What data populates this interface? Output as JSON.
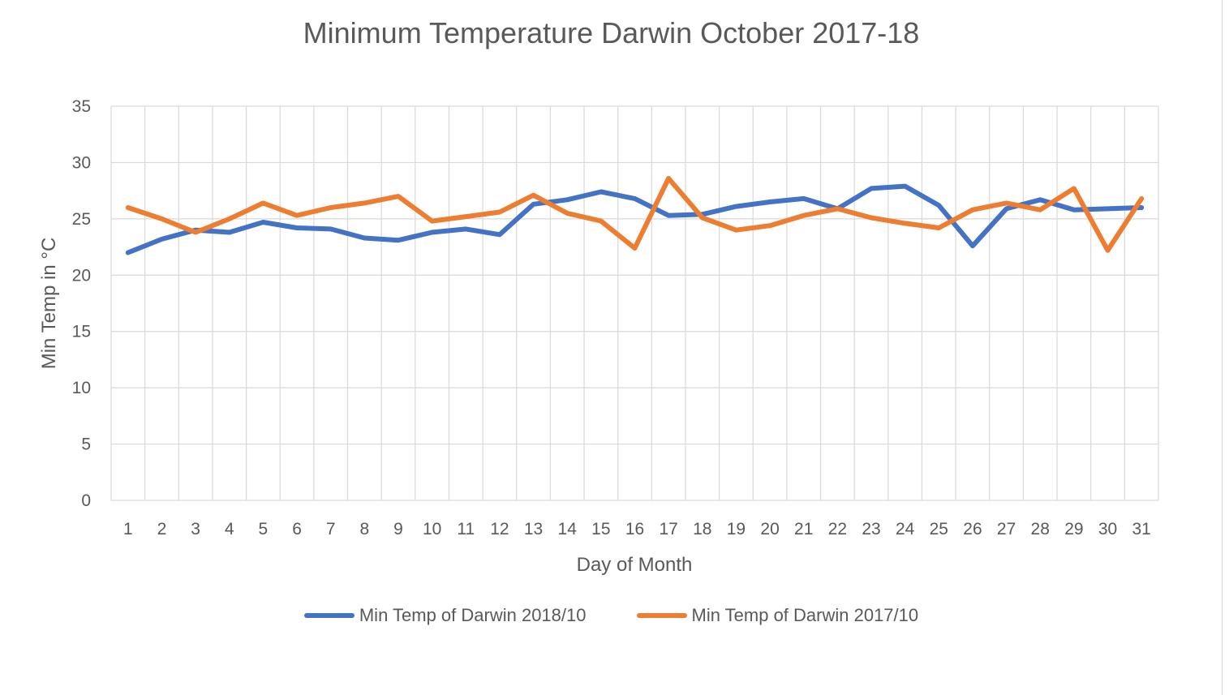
{
  "chart_data": {
    "type": "line",
    "title": "Minimum Temperature Darwin October 2017-18",
    "xlabel": "Day of Month",
    "ylabel": "Min Temp in °C",
    "ylim": [
      0,
      35
    ],
    "yticks": [
      0,
      5,
      10,
      15,
      20,
      25,
      30,
      35
    ],
    "grid": true,
    "legend_position": "bottom",
    "categories": [
      1,
      2,
      3,
      4,
      5,
      6,
      7,
      8,
      9,
      10,
      11,
      12,
      13,
      14,
      15,
      16,
      17,
      18,
      19,
      20,
      21,
      22,
      23,
      24,
      25,
      26,
      27,
      28,
      29,
      30,
      31
    ],
    "series": [
      {
        "name": "Min Temp of Darwin 2018/10",
        "color": "#4472c4",
        "values": [
          22.0,
          23.2,
          24.0,
          23.8,
          24.7,
          24.2,
          24.1,
          23.3,
          23.1,
          23.8,
          24.1,
          23.6,
          26.3,
          26.7,
          27.4,
          26.8,
          25.3,
          25.4,
          26.1,
          26.5,
          26.8,
          25.9,
          27.7,
          27.9,
          26.2,
          22.6,
          25.9,
          26.7,
          25.8,
          25.9,
          26.0
        ]
      },
      {
        "name": "Min Temp of Darwin 2017/10",
        "color": "#ed7d31",
        "values": [
          26.0,
          25.0,
          23.8,
          25.0,
          26.4,
          25.3,
          26.0,
          26.4,
          27.0,
          24.8,
          25.2,
          25.6,
          27.1,
          25.5,
          24.8,
          22.4,
          28.6,
          25.1,
          24.0,
          24.4,
          25.3,
          25.9,
          25.1,
          24.6,
          24.2,
          25.8,
          26.4,
          25.8,
          27.7,
          22.2,
          26.8
        ]
      }
    ]
  }
}
